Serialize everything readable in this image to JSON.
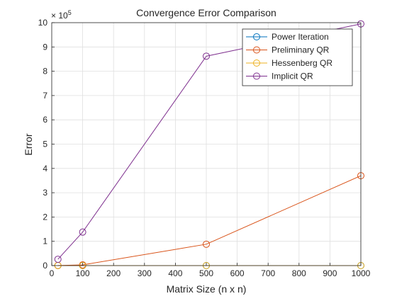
{
  "chart_data": {
    "type": "line",
    "title": "Convergence Error Comparison",
    "xlabel": "Matrix Size (n x n)",
    "ylabel": "Error",
    "xlim": [
      0,
      1000
    ],
    "ylim": [
      0,
      1000000
    ],
    "x_ticks": [
      0,
      100,
      200,
      300,
      400,
      500,
      600,
      700,
      800,
      900,
      1000
    ],
    "y_ticks": [
      0,
      100000,
      200000,
      300000,
      400000,
      500000,
      600000,
      700000,
      800000,
      900000,
      1000000
    ],
    "y_tick_labels": [
      "0",
      "1",
      "2",
      "3",
      "4",
      "5",
      "6",
      "7",
      "8",
      "9",
      "10"
    ],
    "y_exponent_base": "× 10",
    "y_exponent_power": "5",
    "grid": true,
    "legend_position": "top-right",
    "x": [
      20,
      100,
      500,
      1000
    ],
    "series": [
      {
        "name": "Power Iteration",
        "color": "#0072BD",
        "marker": "circle",
        "values": [
          0,
          0,
          0,
          0
        ]
      },
      {
        "name": "Preliminary QR",
        "color": "#D95319",
        "marker": "circle",
        "values": [
          500,
          3000,
          88000,
          370000
        ]
      },
      {
        "name": "Hessenberg QR",
        "color": "#EDB120",
        "marker": "circle",
        "values": [
          0,
          0,
          0,
          0
        ]
      },
      {
        "name": "Implicit QR",
        "color": "#7E2F8E",
        "marker": "circle",
        "values": [
          26000,
          138000,
          862000,
          995000
        ]
      }
    ]
  }
}
